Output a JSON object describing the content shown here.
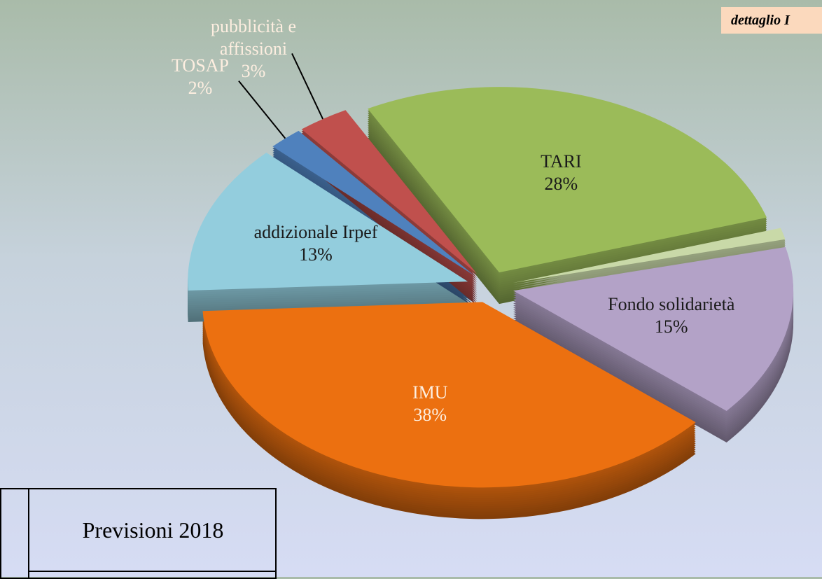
{
  "chart_data": {
    "type": "pie",
    "categories": [
      "TARI",
      null,
      "Fondo solidarietà",
      "IMU",
      "addizionale Irpef",
      "TOSAP",
      "pubblicità e affissioni"
    ],
    "values": [
      28,
      1,
      15,
      38,
      13,
      2,
      3
    ],
    "value_labels": [
      "28%",
      null,
      "15%",
      "38%",
      "13%",
      "2%",
      "3%"
    ],
    "colors": [
      "#9bbb59",
      "#c9d9a8",
      "#b3a2c7",
      "#ec7010",
      "#93cddd",
      "#4f81bd",
      "#c0504d"
    ],
    "start_angle": -118
  },
  "note": "dettaglio I",
  "table": {
    "header": [
      "Previsioni 2018"
    ]
  }
}
